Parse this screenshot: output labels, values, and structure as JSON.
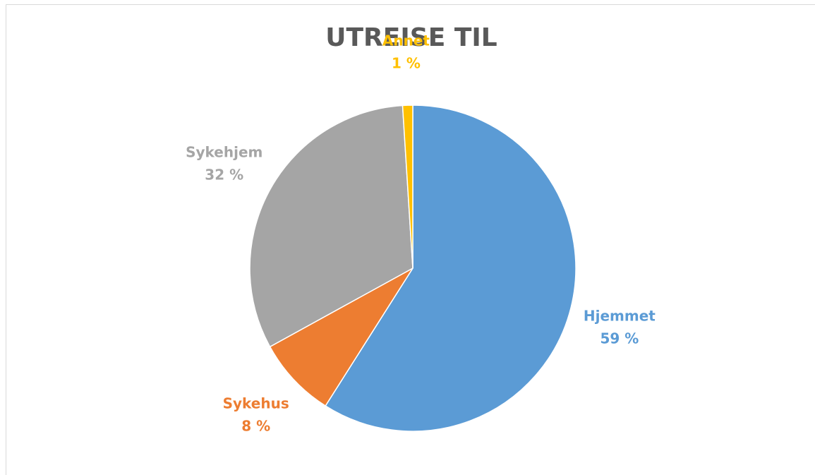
{
  "chart_data": {
    "type": "pie",
    "title": "UTREISE TIL",
    "categories": [
      "Hjemmet",
      "Sykehus",
      "Sykehjem",
      "Annet"
    ],
    "values": [
      59,
      8,
      32,
      1
    ],
    "value_labels": [
      "59 %",
      "8 %",
      "32 %",
      "1 %"
    ],
    "colors": [
      "#5b9bd5",
      "#ed7d31",
      "#a5a5a5",
      "#ffc000"
    ]
  }
}
